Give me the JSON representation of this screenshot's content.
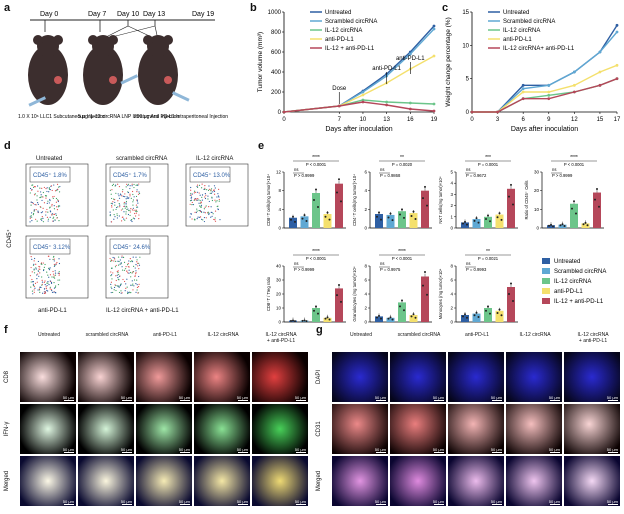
{
  "panels": {
    "a": {
      "label": "a",
      "timeline": [
        "Day 0",
        "Day 7",
        "Day 10",
        "Day 13",
        "Day 19"
      ],
      "steps": [
        "1.0 X 10⁶ LLC1\nSubcutaneous Injection",
        "5 μg IL-12 circRNA LNP\nIntratumoral Injection",
        "200 μg Anti PD-L1\nIntraperitoneal Injection"
      ]
    },
    "b": {
      "label": "b"
    },
    "c": {
      "label": "c"
    },
    "d": {
      "label": "d",
      "ylabel": "CD45⁺",
      "xlabel": "",
      "titles": [
        "Untreated",
        "scrambled circRNA",
        "IL-12 circRNA",
        "anti-PD-L1",
        "IL-12 circRNA + anti-PD-L1"
      ],
      "gates": [
        "CD45⁺ 1.8%",
        "CD45⁺ 1.7%",
        "CD45⁺ 13.0%",
        "CD45⁺ 3.12%",
        "CD45⁺ 24.6%"
      ]
    },
    "e": {
      "label": "e"
    },
    "f": {
      "label": "f",
      "cols": [
        "Untreated",
        "scrambled circRNA",
        "anti-PD-L1",
        "IL-12 circRNA",
        "IL-12 circRNA\n+ anti-PD-L1"
      ],
      "rows": [
        "CD8",
        "IFN-γ",
        "Merged"
      ],
      "scale": "50 μm"
    },
    "g": {
      "label": "g",
      "cols": [
        "Untreated",
        "scrambled circRNA",
        "anti-PD-L1",
        "IL-12 circRNA",
        "IL-12 circRNA\n+ anti-PD-L1"
      ],
      "rows": [
        "DAPI",
        "CD31",
        "Merged"
      ],
      "scale": "50 μm"
    }
  },
  "legend": {
    "names": [
      "Untreated",
      "Scrambled circRNA",
      "IL-12 circRNA",
      "anti-PD-L1",
      "IL-12 + anti-PD-L1"
    ],
    "names_c": [
      "Untreated",
      "Scrambled circRNA",
      "IL-12 circRNA",
      "anti-PD-L1",
      "IL-12 circRNA+ anti-PD-L1"
    ],
    "colors": [
      "#2e5fa3",
      "#5fa8d3",
      "#6cc58a",
      "#f4e06d",
      "#b5475a"
    ]
  },
  "chart_data": [
    {
      "id": "b",
      "type": "line",
      "xlabel": "Days after inoculation",
      "ylabel": "Tumor volume (mm³)",
      "x": [
        0,
        7,
        10,
        13,
        16,
        19
      ],
      "xlim": [
        0,
        19
      ],
      "ylim": [
        0,
        1000
      ],
      "xticks": [
        0,
        7,
        10,
        13,
        16,
        19
      ],
      "yticks": [
        0,
        200,
        400,
        600,
        800,
        1000
      ],
      "annotations": [
        "Dose",
        "anti-PD-L1",
        "anti-PD-L1"
      ],
      "series": [
        {
          "name": "Untreated",
          "values": [
            0,
            60,
            210,
            380,
            600,
            860
          ]
        },
        {
          "name": "Scrambled circRNA",
          "values": [
            0,
            60,
            200,
            360,
            580,
            830
          ]
        },
        {
          "name": "IL-12 circRNA",
          "values": [
            0,
            60,
            120,
            100,
            90,
            80
          ]
        },
        {
          "name": "anti-PD-L1",
          "values": [
            0,
            60,
            170,
            290,
            430,
            560
          ]
        },
        {
          "name": "IL-12 + anti-PD-L1",
          "values": [
            0,
            60,
            100,
            70,
            30,
            10
          ]
        }
      ]
    },
    {
      "id": "c",
      "type": "line",
      "xlabel": "Days after inoculation",
      "ylabel": "Weight change percentage (%)",
      "x": [
        0,
        3,
        6,
        9,
        12,
        15,
        17
      ],
      "xlim": [
        0,
        17
      ],
      "ylim": [
        0,
        15
      ],
      "xticks": [
        0,
        3,
        6,
        9,
        12,
        15,
        17
      ],
      "yticks": [
        0,
        5,
        10,
        15
      ],
      "series": [
        {
          "name": "Untreated",
          "values": [
            0,
            0,
            4,
            4,
            6,
            9,
            13
          ]
        },
        {
          "name": "Scrambled circRNA",
          "values": [
            0,
            0,
            3.5,
            4,
            6,
            9,
            12
          ]
        },
        {
          "name": "IL-12 circRNA",
          "values": [
            0,
            0,
            2,
            2.5,
            3,
            4,
            5
          ]
        },
        {
          "name": "anti-PD-L1",
          "values": [
            0,
            0,
            3,
            3,
            4,
            6,
            7
          ]
        },
        {
          "name": "IL-12 circRNA+ anti-PD-L1",
          "values": [
            0,
            0,
            2,
            2,
            3,
            4,
            5
          ]
        }
      ]
    },
    {
      "id": "e1",
      "type": "bar",
      "ylabel": "CD8⁺T cells(mg tumor)×10⁴",
      "values": [
        2.2,
        2.5,
        7.5,
        3.0,
        9.5
      ],
      "ylim": [
        0,
        12
      ],
      "yticks": [
        0,
        4,
        8,
        12
      ],
      "annotations": [
        "****",
        "P < 0.0001",
        "ns",
        "P > 0.9999"
      ]
    },
    {
      "id": "e2",
      "type": "bar",
      "ylabel": "CD4⁺T cells(mg tumor)×10⁴",
      "values": [
        1.5,
        1.4,
        1.8,
        1.6,
        4.0
      ],
      "ylim": [
        0,
        6
      ],
      "yticks": [
        0,
        2,
        4,
        6
      ],
      "annotations": [
        "**",
        "P = 0.0020",
        "ns",
        "P = 0.9868"
      ]
    },
    {
      "id": "e3",
      "type": "bar",
      "ylabel": "NKT cells(mg tumor)×10⁴",
      "values": [
        0.5,
        0.8,
        1.0,
        1.2,
        3.5
      ],
      "ylim": [
        0,
        5
      ],
      "yticks": [
        0,
        1,
        2,
        3,
        4,
        5
      ],
      "annotations": [
        "***",
        "P = 0.0001",
        "ns",
        "P = 0.9672"
      ]
    },
    {
      "id": "e4",
      "type": "bar",
      "ylabel": "Ratio of CD45⁺ Cells",
      "values": [
        1.5,
        1.8,
        13.0,
        2.5,
        19.0
      ],
      "ylim": [
        0,
        30
      ],
      "yticks": [
        0,
        10,
        20,
        30
      ],
      "annotations": [
        "****",
        "P < 0.0001",
        "ns",
        "P > 0.9999"
      ]
    },
    {
      "id": "e5",
      "type": "bar",
      "ylabel": "CD8⁺T / Treg ratio",
      "values": [
        1.0,
        1.0,
        10.0,
        3.0,
        24.0
      ],
      "ylim": [
        0,
        40
      ],
      "yticks": [
        0,
        10,
        20,
        30,
        40
      ],
      "annotations": [
        "****",
        "P < 0.0001",
        "ns",
        "P > 0.9999"
      ]
    },
    {
      "id": "e6",
      "type": "bar",
      "ylabel": "Granulocytes (mg tumor)×10⁴",
      "values": [
        0.8,
        0.6,
        2.8,
        1.0,
        6.5
      ],
      "ylim": [
        0,
        8
      ],
      "yticks": [
        0,
        2,
        4,
        6,
        8
      ],
      "annotations": [
        "****",
        "P < 0.0001",
        "ns",
        "P = 0.9975"
      ]
    },
    {
      "id": "e7",
      "type": "bar",
      "ylabel": "Monocytes (mg tumor)×10⁴",
      "values": [
        1.0,
        1.2,
        2.0,
        1.6,
        5.0
      ],
      "ylim": [
        0,
        8
      ],
      "yticks": [
        0,
        2,
        4,
        6,
        8
      ],
      "annotations": [
        "**",
        "P = 0.0021",
        "ns",
        "P = 0.9993"
      ]
    }
  ]
}
